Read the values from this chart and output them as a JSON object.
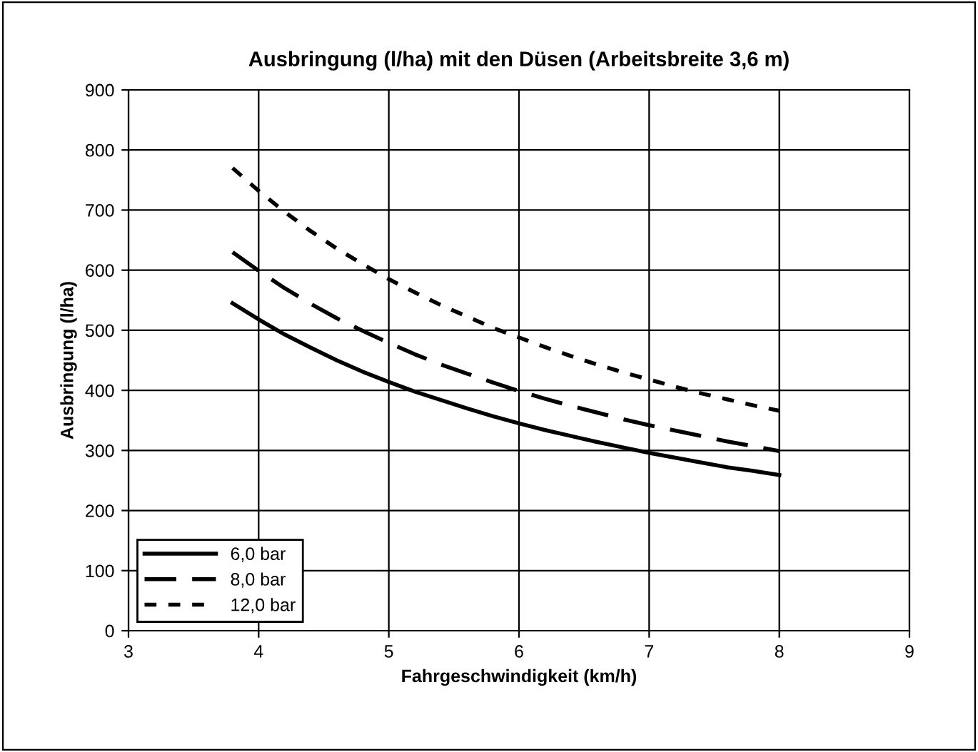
{
  "chart_data": {
    "type": "line",
    "title": "Ausbringung (l/ha) mit den Düsen (Arbeitsbreite 3,6 m)",
    "xlabel": "Fahrgeschwindigkeit (km/h)",
    "ylabel": "Ausbringung (l/ha)",
    "x": [
      3.8,
      4.0,
      4.2,
      4.4,
      4.6,
      4.8,
      5.0,
      5.2,
      5.4,
      5.6,
      5.8,
      6.0,
      6.2,
      6.4,
      6.6,
      6.8,
      7.0,
      7.2,
      7.4,
      7.6,
      7.8,
      8.0
    ],
    "series": [
      {
        "name": "6,0 bar",
        "color": "#000000",
        "line_style": "solid",
        "values": [
          545,
          518,
          493,
          471,
          450,
          431,
          414,
          398,
          384,
          370,
          357,
          345,
          334,
          324,
          314,
          305,
          296,
          288,
          280,
          272,
          266,
          259
        ]
      },
      {
        "name": "8,0 bar",
        "color": "#000000",
        "line_style": "dashed",
        "values": [
          630,
          599,
          570,
          544,
          520,
          499,
          479,
          460,
          443,
          428,
          413,
          399,
          386,
          374,
          363,
          352,
          342,
          333,
          324,
          315,
          307,
          299
        ]
      },
      {
        "name": "12,0 bar",
        "color": "#000000",
        "line_style": "dotted",
        "values": [
          770,
          732,
          697,
          665,
          636,
          610,
          585,
          563,
          542,
          523,
          504,
          488,
          472,
          457,
          443,
          430,
          418,
          406,
          395,
          385,
          375,
          366
        ]
      }
    ],
    "xlim": [
      3,
      9
    ],
    "xticks": [
      3,
      4,
      5,
      6,
      7,
      8,
      9
    ],
    "ylim": [
      0,
      900
    ],
    "yticks": [
      0,
      100,
      200,
      300,
      400,
      500,
      600,
      700,
      800,
      900
    ],
    "grid": true,
    "legend": "bottom left",
    "marker": "none"
  }
}
